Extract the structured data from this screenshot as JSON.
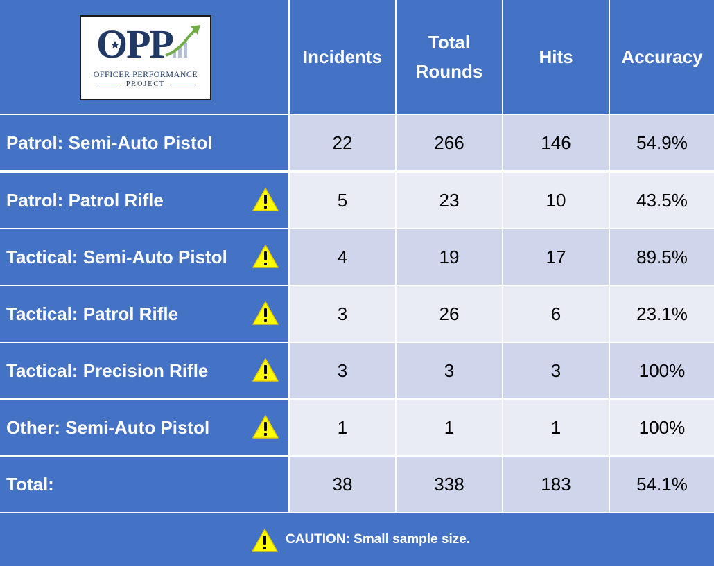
{
  "logo": {
    "letters": "OPP",
    "line1": "OFFICER PERFORMANCE",
    "line2": "PROJECT",
    "colors": {
      "navy": "#1f3864",
      "arrow": "#70ad47"
    }
  },
  "colors": {
    "header": "#4472c4",
    "row_dark": "#cfd5ea",
    "row_light": "#e9ebf5",
    "warning": "#ffff00"
  },
  "chart_data": {
    "type": "table",
    "columns": [
      "Incidents",
      "Total Rounds",
      "Hits",
      "Accuracy"
    ],
    "column_header_lines": [
      [
        "Incidents"
      ],
      [
        "Total",
        "Rounds"
      ],
      [
        "Hits"
      ],
      [
        "Accuracy"
      ]
    ],
    "rows": [
      {
        "label": "Patrol: Semi-Auto Pistol",
        "caution": false,
        "values": [
          "22",
          "266",
          "146",
          "54.9%"
        ]
      },
      {
        "label": "Patrol: Patrol Rifle",
        "caution": true,
        "values": [
          "5",
          "23",
          "10",
          "43.5%"
        ]
      },
      {
        "label": "Tactical: Semi-Auto Pistol",
        "caution": true,
        "values": [
          "4",
          "19",
          "17",
          "89.5%"
        ]
      },
      {
        "label": "Tactical: Patrol Rifle",
        "caution": true,
        "values": [
          "3",
          "26",
          "6",
          "23.1%"
        ]
      },
      {
        "label": "Tactical: Precision Rifle",
        "caution": true,
        "values": [
          "3",
          "3",
          "3",
          "100%"
        ]
      },
      {
        "label": "Other: Semi-Auto Pistol",
        "caution": true,
        "values": [
          "1",
          "1",
          "1",
          "100%"
        ]
      },
      {
        "label": "Total:",
        "caution": false,
        "values": [
          "38",
          "338",
          "183",
          "54.1%"
        ]
      }
    ],
    "footnote": "CAUTION: Small sample size."
  }
}
